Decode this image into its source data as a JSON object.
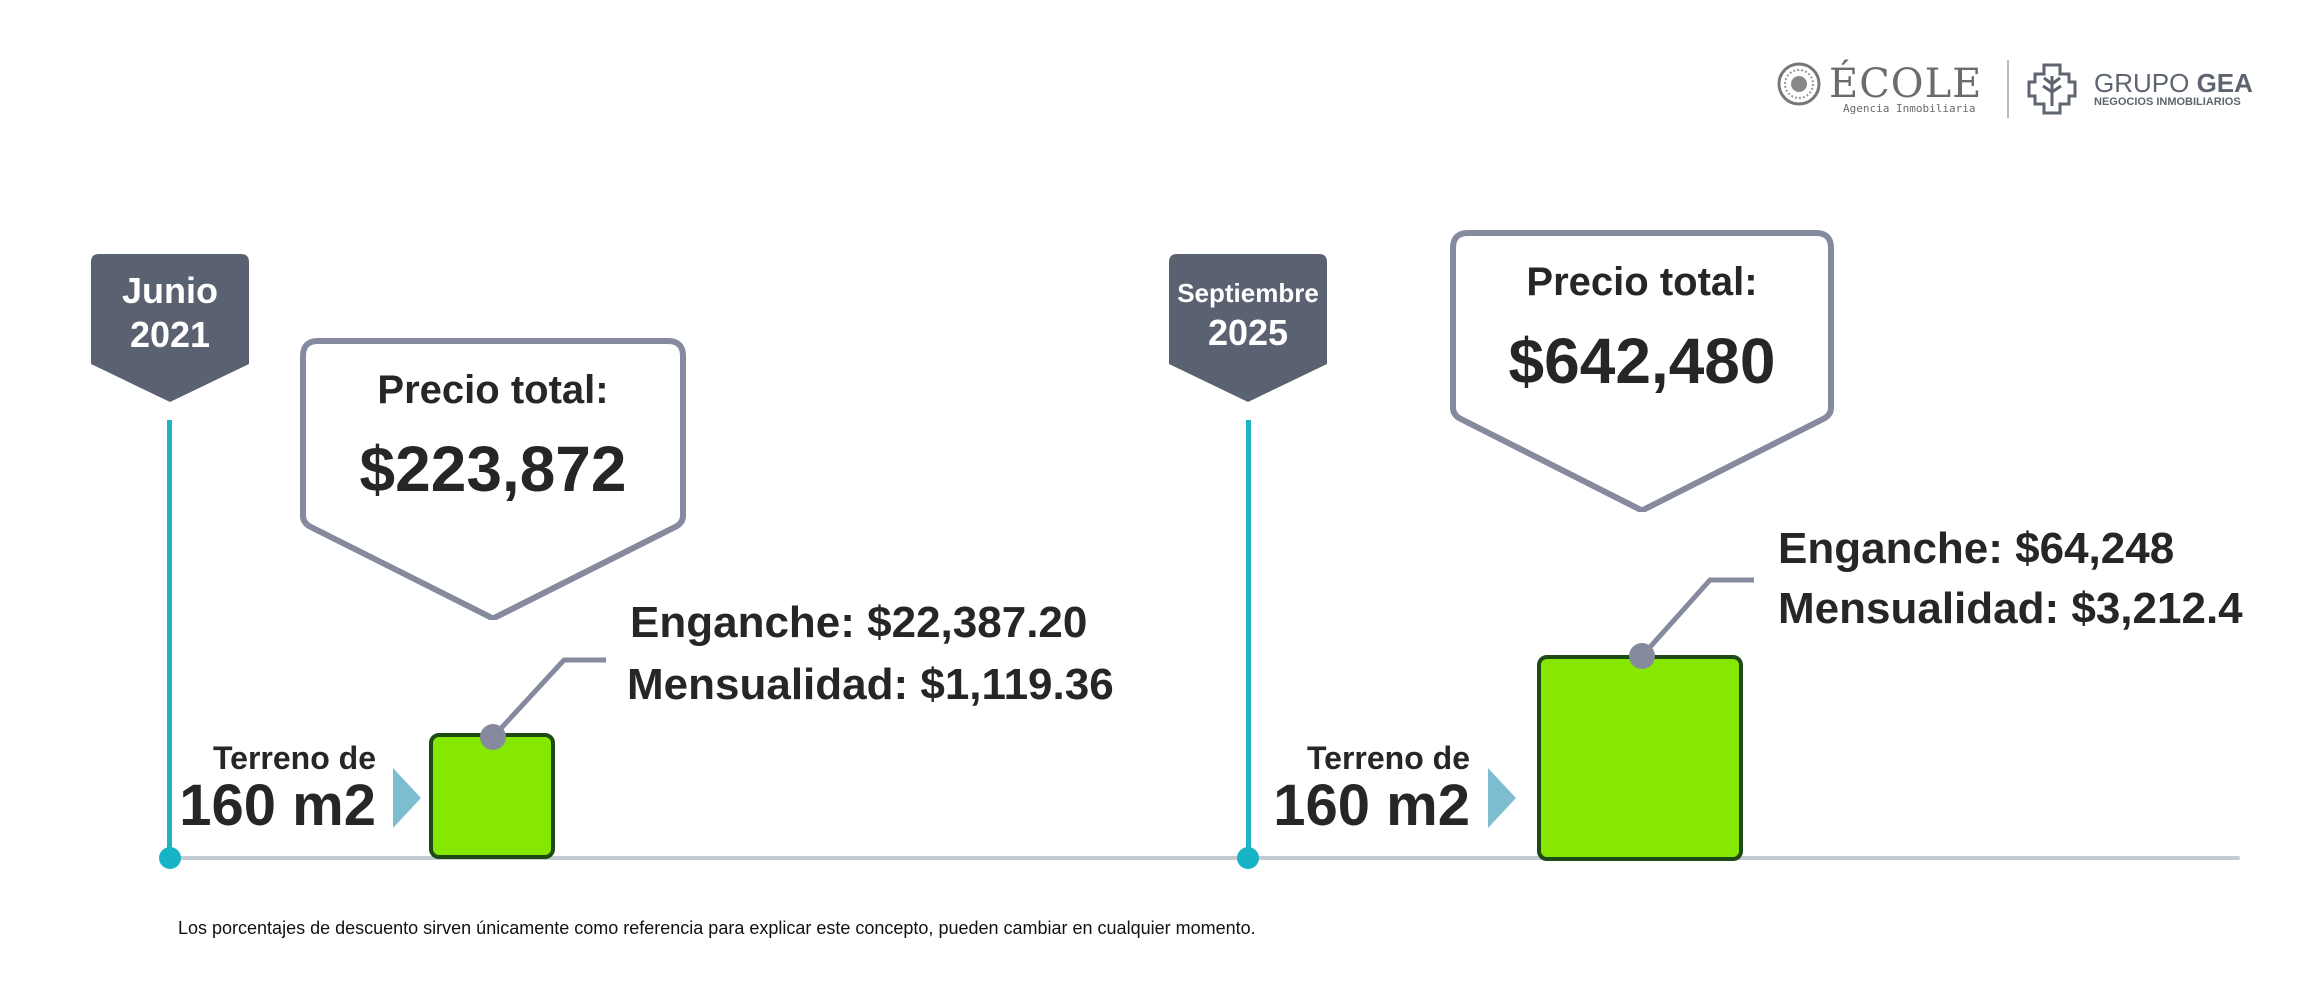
{
  "logos": {
    "ecole": {
      "name": "ÉCOLE",
      "subtitle": "Agencia Inmobiliaria"
    },
    "gea": {
      "name_light": "GRUPO",
      "name_bold": "GEA",
      "subtitle": "NEGOCIOS INMOBILIARIOS"
    }
  },
  "colors": {
    "timeline": "#c3cbd1",
    "tick": "#1fb3c4",
    "flag": "#5a6272",
    "bubble_border": "#858a9e",
    "lot_fill": "#86e800",
    "arrow": "#7ebdd0"
  },
  "milestones": [
    {
      "month": "Junio",
      "year": "2021",
      "price_label": "Precio total:",
      "price": "$223,872",
      "terreno_label": "Terreno de",
      "terreno_size": "160 m2",
      "enganche": "Enganche: $22,387.20",
      "mensualidad": "Mensualidad: $1,119.36"
    },
    {
      "month": "Septiembre",
      "year": "2025",
      "price_label": "Precio total:",
      "price": "$642,480",
      "terreno_label": "Terreno de",
      "terreno_size": "160 m2",
      "enganche": "Enganche: $64,248",
      "mensualidad": "Mensualidad: $3,212.4"
    }
  ],
  "footnote": "Los porcentajes de descuento sirven únicamente como referencia para explicar este concepto, pueden cambiar en cualquier momento."
}
